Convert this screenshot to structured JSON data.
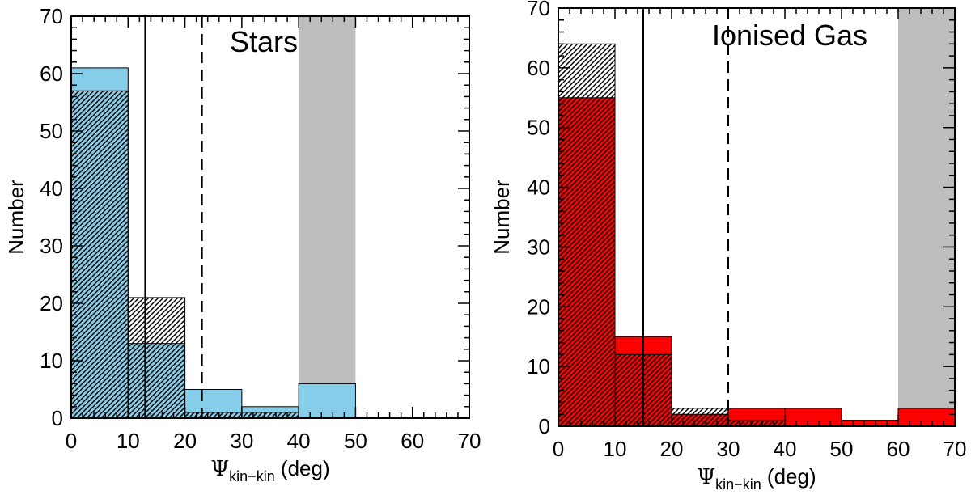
{
  "chart_data": [
    {
      "type": "bar",
      "title": "Stars",
      "xlabel": {
        "symbol": "Ψ",
        "sub": "kin−kin",
        "unit": " (deg)"
      },
      "ylabel": "Number",
      "xlim": [
        0,
        70
      ],
      "ylim": [
        0,
        70
      ],
      "xticks": [
        "0",
        "10",
        "20",
        "30",
        "40",
        "50",
        "60",
        "70"
      ],
      "yticks": [
        "0",
        "10",
        "20",
        "30",
        "40",
        "50",
        "60",
        "70"
      ],
      "bins": [
        [
          0,
          10
        ],
        [
          10,
          20
        ],
        [
          20,
          30
        ],
        [
          30,
          40
        ],
        [
          40,
          50
        ]
      ],
      "series": [
        {
          "style": "filled",
          "color": "#87ceeb",
          "values": [
            61,
            13,
            5,
            2,
            6
          ]
        },
        {
          "style": "hatched",
          "color": "#000000",
          "values": [
            57,
            21,
            1,
            1,
            0
          ]
        }
      ],
      "shaded_region": [
        40,
        50
      ],
      "vlines": [
        {
          "x": 13,
          "style": "solid"
        },
        {
          "x": 23,
          "style": "dashed"
        }
      ],
      "grid": false
    },
    {
      "type": "bar",
      "title": "Ionised Gas",
      "xlabel": {
        "symbol": "Ψ",
        "sub": "kin−kin",
        "unit": " (deg)"
      },
      "ylabel": "Number",
      "xlim": [
        0,
        70
      ],
      "ylim": [
        0,
        70
      ],
      "xticks": [
        "0",
        "10",
        "20",
        "30",
        "40",
        "50",
        "60",
        "70"
      ],
      "yticks": [
        "0",
        "10",
        "20",
        "30",
        "40",
        "50",
        "60",
        "70"
      ],
      "bins": [
        [
          0,
          10
        ],
        [
          10,
          20
        ],
        [
          20,
          30
        ],
        [
          30,
          40
        ],
        [
          40,
          50
        ],
        [
          50,
          60
        ],
        [
          60,
          70
        ]
      ],
      "series": [
        {
          "style": "filled",
          "color": "#ff0000",
          "values": [
            55,
            15,
            2,
            3,
            3,
            1,
            3
          ]
        },
        {
          "style": "hatched",
          "color": "#000000",
          "values": [
            64,
            12,
            3,
            1,
            0,
            0,
            0
          ]
        }
      ],
      "shaded_region": [
        60,
        70
      ],
      "vlines": [
        {
          "x": 15,
          "style": "solid"
        },
        {
          "x": 30,
          "style": "dashed"
        }
      ],
      "grid": false
    }
  ]
}
